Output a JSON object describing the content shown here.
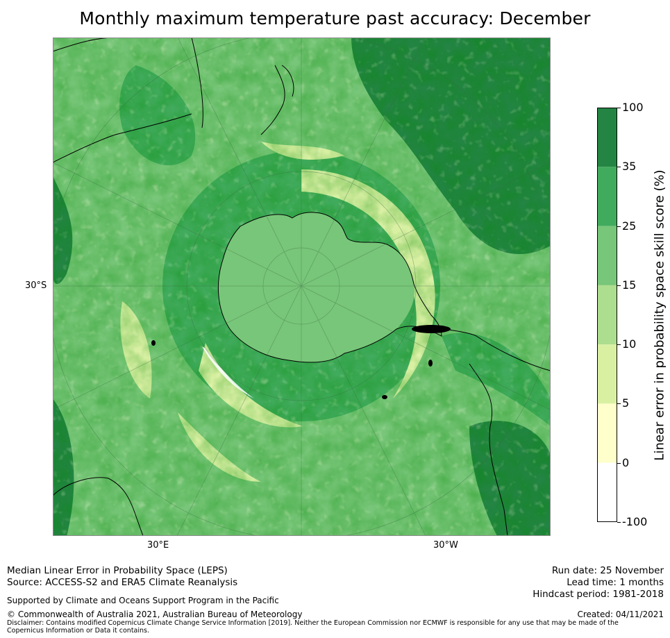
{
  "title": "Monthly maximum temperature past accuracy: December",
  "map": {
    "lat_label": "30°S",
    "lon_labels": {
      "east": "30°E",
      "west": "30°W"
    },
    "palette": {
      "lt0": "#ffffff",
      "0_5": "#ffffcc",
      "5_10": "#d9f0a3",
      "10_15": "#addd8e",
      "15_25": "#78c679",
      "25_35": "#41ab5d",
      "35_100": "#238443",
      "coast": "#000000",
      "grid": "#3a6b45"
    }
  },
  "colorbar": {
    "label": "Linear error in probability space skill score (%)",
    "ticks": [
      "100",
      "35",
      "25",
      "15",
      "10",
      "5",
      "0",
      "-100"
    ]
  },
  "footer": {
    "left_line1": "Median Linear Error in Probability Space (LEPS)",
    "left_line2": "Source: ACCESS-S2 and ERA5 Climate Reanalysis",
    "support": "Supported by Climate and Oceans Support Program in the Pacific",
    "copyright": "© Commonwealth of Australia 2021, Australian Bureau of Meteorology",
    "disclaimer": "Disclaimer: Contains modified Copernicus Climate Change Service Information [2019]. Neither the European Commission nor ECMWF is responsible for any use that may be made of the Copernicus Information or Data it contains.",
    "run_date": "Run date: 25 November",
    "lead_time": "Lead time: 1 months",
    "hindcast": "Hindcast period: 1981-2018",
    "created": "Created: 04/11/2021"
  }
}
